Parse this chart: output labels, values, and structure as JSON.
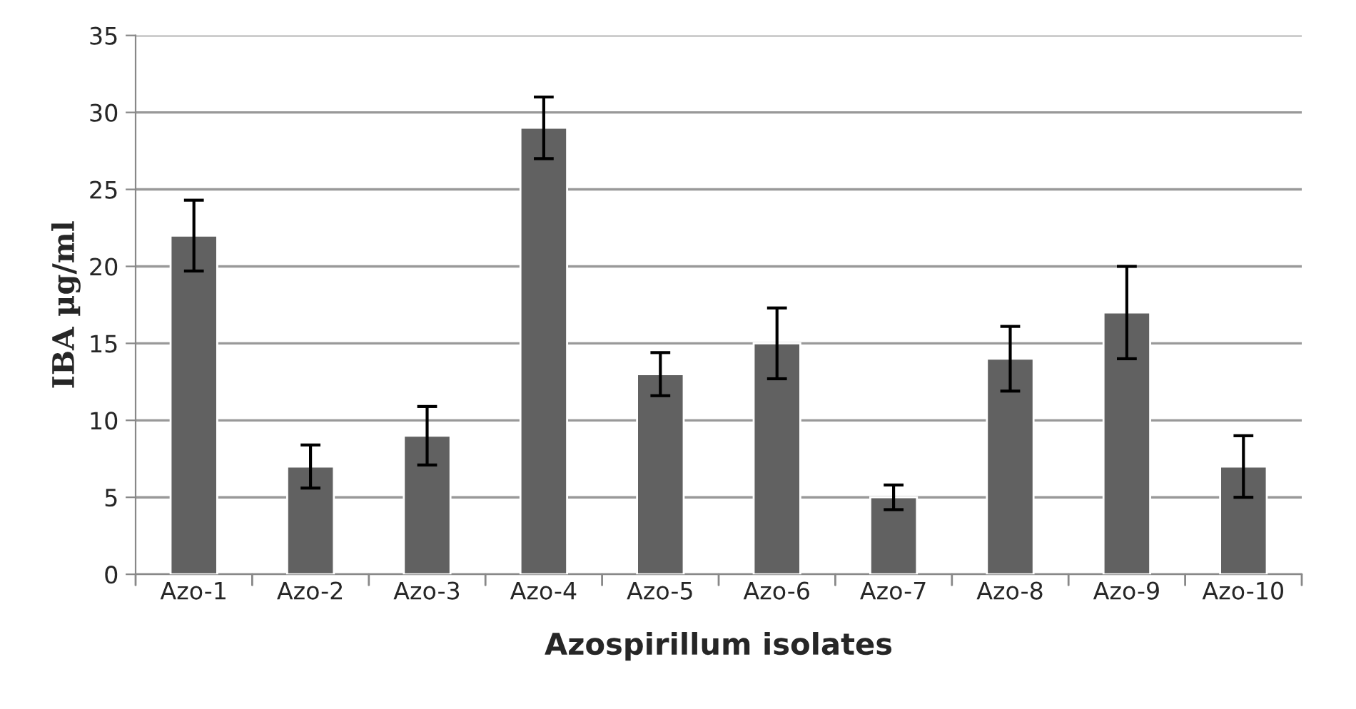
{
  "chart_data": {
    "type": "bar",
    "xlabel": "Azospirillum isolates",
    "ylabel": "IBA µg/ml",
    "categories": [
      "Azo-1",
      "Azo-2",
      "Azo-3",
      "Azo-4",
      "Azo-5",
      "Azo-6",
      "Azo-7",
      "Azo-8",
      "Azo-9",
      "Azo-10"
    ],
    "values": [
      22,
      7,
      9,
      29,
      13,
      15,
      5,
      14,
      17,
      7
    ],
    "errors": [
      2.3,
      1.4,
      1.9,
      2,
      1.4,
      2.3,
      0.8,
      2.1,
      3,
      2
    ],
    "color": "#616161",
    "ylim": [
      0,
      35
    ],
    "yticks": [
      0,
      5,
      10,
      15,
      20,
      25,
      30,
      35
    ],
    "grid": "y"
  }
}
